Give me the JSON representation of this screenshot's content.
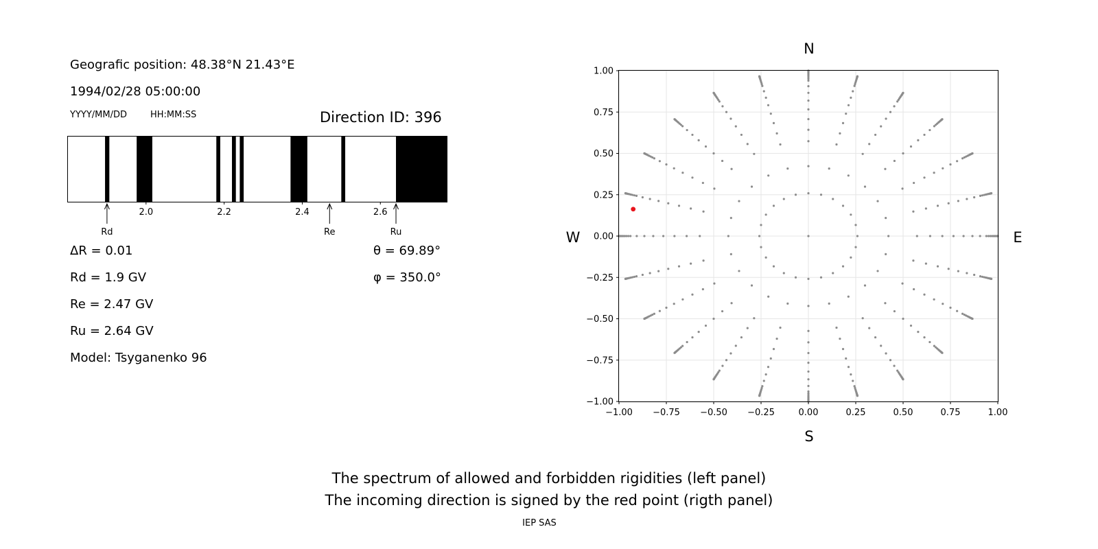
{
  "header": {
    "position_label": "Geografic position: 48.38°N 21.43°E",
    "datetime": "1994/02/28 05:00:00",
    "date_format": "YYYY/MM/DD",
    "time_format": "HH:MM:SS",
    "direction_id": "Direction ID: 396"
  },
  "params": {
    "delta_r": "ΔR = 0.01",
    "rd": "Rd = 1.9 GV",
    "re": "Re = 2.47 GV",
    "ru": "Ru = 2.64 GV",
    "model": "Model: Tsyganenko 96",
    "theta": "θ = 69.89°",
    "phi": "φ = 350.0°"
  },
  "chart_data": [
    {
      "type": "bar",
      "description_kind": "rigidity spectrum",
      "xlim": [
        1.8,
        2.77
      ],
      "xticks": [
        "2.0",
        "2.2",
        "2.4",
        "2.6"
      ],
      "xtick_values": [
        2.0,
        2.2,
        2.4,
        2.6
      ],
      "forbidden_intervals": [
        [
          1.895,
          1.906
        ],
        [
          1.976,
          2.016
        ],
        [
          2.18,
          2.19
        ],
        [
          2.22,
          2.23
        ],
        [
          2.24,
          2.25
        ],
        [
          2.37,
          2.413
        ],
        [
          2.5,
          2.51
        ],
        [
          2.64,
          2.77
        ]
      ],
      "markers": [
        {
          "label": "Rd",
          "value": 1.9
        },
        {
          "label": "Re",
          "value": 2.47
        },
        {
          "label": "Ru",
          "value": 2.64
        }
      ],
      "colors": {
        "forbidden": "#000000",
        "allowed": "#ffffff"
      }
    },
    {
      "type": "scatter",
      "xlim": [
        -1.0,
        1.0
      ],
      "ylim": [
        -1.0,
        1.0
      ],
      "xticks": [
        "−1.00",
        "−0.75",
        "−0.50",
        "−0.25",
        "0.00",
        "0.25",
        "0.50",
        "0.75",
        "1.00"
      ],
      "yticks": [
        "1.00",
        "0.75",
        "0.50",
        "0.25",
        "0.00",
        "−0.25",
        "−0.50",
        "−0.75",
        "−1.00"
      ],
      "grid": true,
      "compass": {
        "north": "N",
        "south": "S",
        "west": "W",
        "east": "E"
      },
      "grid_directions": {
        "azimuth_step_deg": 15,
        "zenith_rings_deg": [
          15,
          25,
          35,
          40,
          45,
          50,
          55,
          60,
          65,
          70,
          72,
          74,
          76,
          78,
          80,
          82,
          84,
          86,
          88,
          90
        ]
      },
      "highlight_point": {
        "x": -0.925,
        "y": 0.163
      },
      "colors": {
        "points": "#8c8c8c",
        "highlight": "#e8141c",
        "grid": "#e6e6e6"
      }
    }
  ],
  "footer": {
    "caption_line1": "The spectrum of allowed and forbidden rigidities (left panel)",
    "caption_line2": "The incoming direction is signed by the red point (rigth panel)",
    "credit": "IEP SAS"
  }
}
